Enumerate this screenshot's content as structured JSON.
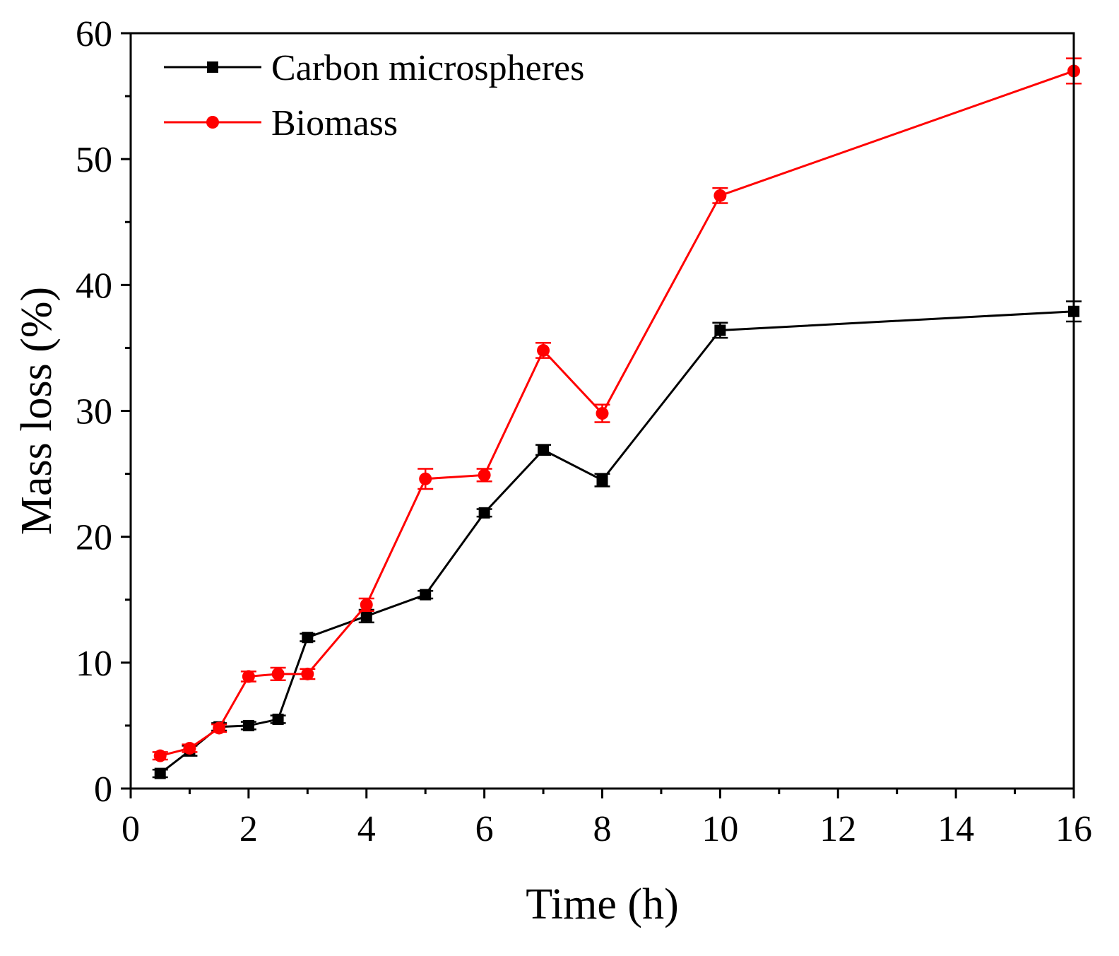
{
  "chart_data": {
    "type": "line",
    "xlabel": "Time (h)",
    "ylabel": "Mass loss (%)",
    "xlim": [
      0,
      16
    ],
    "ylim": [
      0,
      60
    ],
    "xticks": [
      0,
      2,
      4,
      6,
      8,
      10,
      12,
      14,
      16
    ],
    "xtick_labels": [
      "0",
      "2",
      "4",
      "6",
      "8",
      "10",
      "12",
      "14",
      "16"
    ],
    "yticks": [
      0,
      10,
      20,
      30,
      40,
      50,
      60
    ],
    "ytick_labels": [
      "0",
      "10",
      "20",
      "30",
      "40",
      "50",
      "60"
    ],
    "grid": false,
    "legend_position": "top-left",
    "series": [
      {
        "name": "Carbon microspheres",
        "color": "#000000",
        "marker": "square",
        "x": [
          0.5,
          1,
          1.5,
          2,
          2.5,
          3,
          4,
          5,
          6,
          7,
          8,
          10,
          16
        ],
        "y": [
          1.2,
          3.0,
          4.9,
          5.0,
          5.5,
          12.0,
          13.7,
          15.4,
          21.9,
          26.9,
          24.5,
          36.4,
          37.9
        ],
        "err": [
          0.3,
          0.4,
          0.3,
          0.3,
          0.3,
          0.3,
          0.5,
          0.3,
          0.3,
          0.4,
          0.5,
          0.6,
          0.8
        ]
      },
      {
        "name": "Biomass",
        "color": "#ff0000",
        "marker": "circle",
        "x": [
          0.5,
          1,
          1.5,
          2,
          2.5,
          3,
          4,
          5,
          6,
          7,
          8,
          10,
          16
        ],
        "y": [
          2.6,
          3.2,
          4.8,
          8.9,
          9.1,
          9.1,
          14.6,
          24.6,
          24.9,
          34.8,
          29.8,
          47.1,
          57.0
        ],
        "err": [
          0.3,
          0.3,
          0.3,
          0.4,
          0.5,
          0.4,
          0.5,
          0.8,
          0.5,
          0.6,
          0.7,
          0.6,
          1.0
        ]
      }
    ]
  }
}
